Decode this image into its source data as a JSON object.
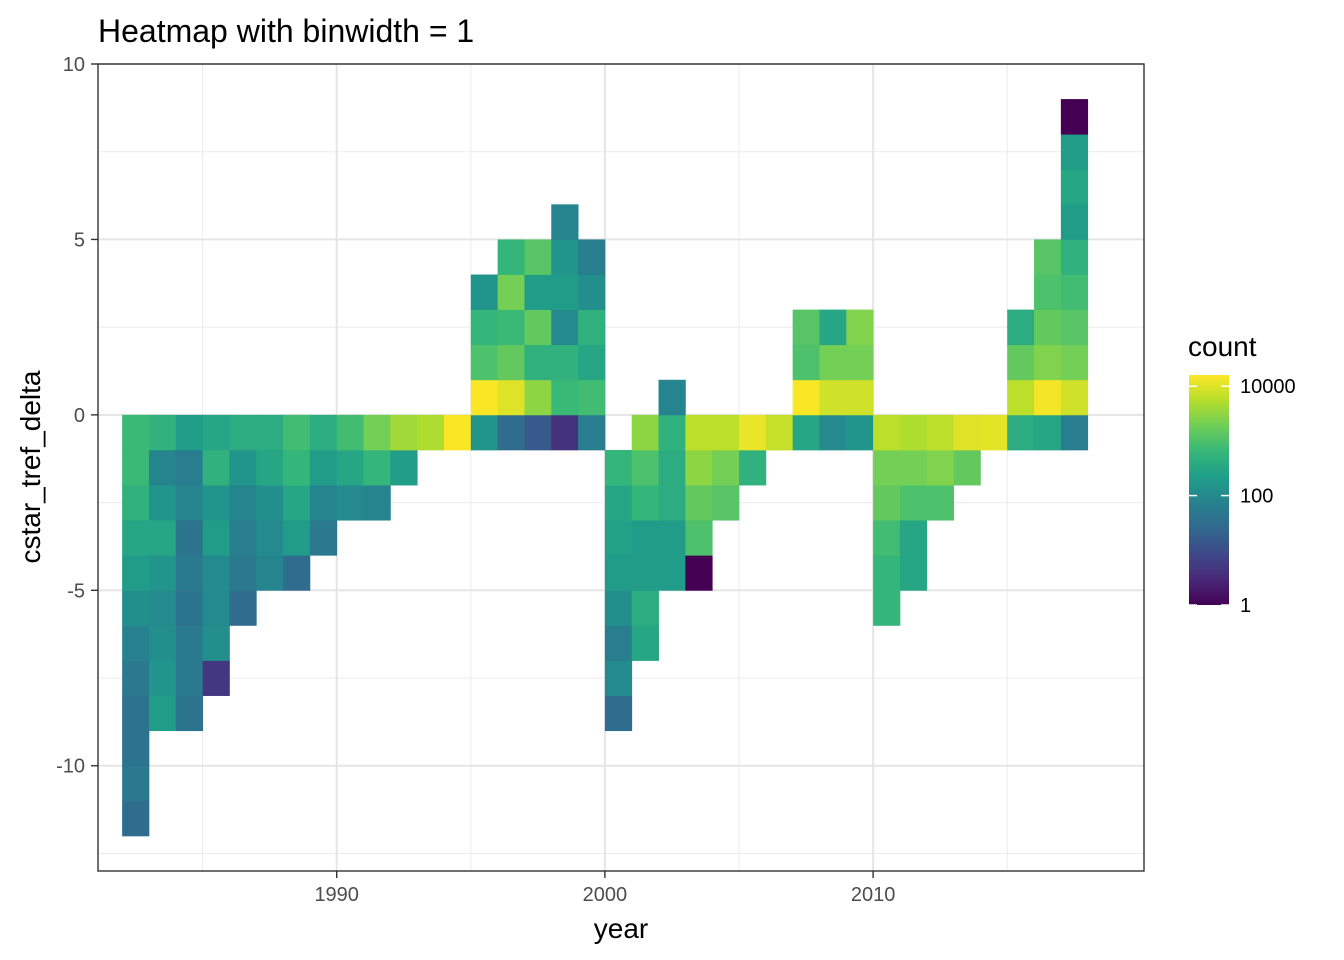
{
  "chart_data": {
    "type": "heatmap",
    "title": "Heatmap with binwidth = 1",
    "xlabel": "year",
    "ylabel": "cstar_tref_delta",
    "xlim": [
      1981.1,
      2020.1
    ],
    "ylim": [
      -13.0,
      10.0
    ],
    "x_ticks": [
      1990,
      2000,
      2010
    ],
    "x_tick_labels": [
      "1990",
      "2000",
      "2010"
    ],
    "y_ticks": [
      -10,
      -5,
      0,
      5,
      10
    ],
    "y_tick_labels": [
      "-10",
      "-5",
      "0",
      "5",
      "10"
    ],
    "grid": true,
    "binwidth": 1,
    "legend": {
      "title": "count",
      "position": "right",
      "scale": "log10",
      "min": 1,
      "max": 16000,
      "ticks": [
        1,
        100,
        10000
      ],
      "tick_labels": [
        "1",
        "100",
        "10000"
      ]
    },
    "colormap": [
      "#440154",
      "#482878",
      "#3e4989",
      "#31688e",
      "#26828e",
      "#1f9e89",
      "#35b779",
      "#6ece58",
      "#b5de2b",
      "#fde725"
    ],
    "bin_x_starts": [
      1982,
      1983,
      1984,
      1985,
      1986,
      1987,
      1988,
      1989,
      1990,
      1991,
      1992,
      1993,
      1994,
      1995,
      1996,
      1997,
      1998,
      1999,
      2000,
      2001,
      2002,
      2003,
      2004,
      2005,
      2006,
      2007,
      2008,
      2009,
      2010,
      2011,
      2012,
      2013,
      2014,
      2015,
      2016,
      2017
    ],
    "columns": [
      {
        "yStart": -12,
        "counts": [
          30,
          50,
          40,
          40,
          50,
          70,
          120,
          200,
          300,
          500,
          700,
          700
        ]
      },
      {
        "yStart": -9,
        "counts": [
          200,
          150,
          120,
          100,
          150,
          300,
          150,
          80,
          500
        ]
      },
      {
        "yStart": -9,
        "counts": [
          40,
          50,
          50,
          40,
          50,
          40,
          80,
          60,
          200
        ]
      },
      {
        "yStart": -8,
        "counts": [
          5,
          120,
          100,
          100,
          200,
          150,
          500,
          300
        ]
      },
      {
        "yStart": -6,
        "counts": [
          30,
          50,
          60,
          80,
          150,
          400
        ]
      },
      {
        "yStart": -5,
        "counts": [
          80,
          100,
          120,
          300,
          400
        ]
      },
      {
        "yStart": -5,
        "counts": [
          30,
          200,
          300,
          600,
          800
        ]
      },
      {
        "yStart": -4,
        "counts": [
          50,
          80,
          200,
          400
        ]
      },
      {
        "yStart": -3,
        "counts": [
          100,
          300,
          800
        ]
      },
      {
        "yStart": -3,
        "counts": [
          80,
          600,
          2000
        ]
      },
      {
        "yStart": -2,
        "counts": [
          200,
          4000
        ]
      },
      {
        "yStart": -1,
        "counts": [
          5000
        ]
      },
      {
        "yStart": -1,
        "counts": [
          15000
        ]
      },
      {
        "yStart": -1,
        "counts": [
          150,
          15000,
          1000,
          600,
          150
        ]
      },
      {
        "yStart": -1,
        "counts": [
          30,
          10000,
          1500,
          700,
          2000,
          600
        ]
      },
      {
        "yStart": -1,
        "counts": [
          15,
          3000,
          500,
          1500,
          200,
          1200
        ]
      },
      {
        "yStart": -1,
        "counts": [
          4,
          700,
          500,
          100,
          200,
          150,
          80
        ]
      },
      {
        "yStart": -1,
        "counts": [
          60,
          800,
          300,
          500,
          120,
          60
        ]
      },
      {
        "yStart": -9,
        "counts": [
          30,
          100,
          60,
          120,
          200,
          250,
          300,
          600
        ]
      },
      {
        "yStart": -7,
        "counts": [
          300,
          400,
          200,
          200,
          600,
          1000,
          3000
        ]
      },
      {
        "yStart": -5,
        "counts": [
          200,
          200,
          400,
          400,
          500,
          80
        ]
      },
      {
        "yStart": -5,
        "counts": [
          1,
          1000,
          1500,
          3000,
          6000
        ]
      },
      {
        "yStart": -3,
        "counts": [
          1200,
          2000,
          6000
        ]
      },
      {
        "yStart": -2,
        "counts": [
          500,
          12000
        ]
      },
      {
        "yStart": -1,
        "counts": [
          7000
        ]
      },
      {
        "yStart": -1,
        "counts": [
          300,
          15000,
          1000,
          1200
        ]
      },
      {
        "yStart": -1,
        "counts": [
          100,
          8000,
          2000,
          300
        ]
      },
      {
        "yStart": -1,
        "counts": [
          150,
          8000,
          2000,
          2500
        ]
      },
      {
        "yStart": -6,
        "counts": [
          600,
          600,
          800,
          1500,
          2000,
          6000
        ]
      },
      {
        "yStart": -5,
        "counts": [
          300,
          300,
          1000,
          2000,
          5000
        ]
      },
      {
        "yStart": -3,
        "counts": [
          1000,
          2500,
          6000
        ]
      },
      {
        "yStart": -2,
        "counts": [
          1500,
          10000
        ]
      },
      {
        "yStart": -1,
        "counts": [
          11000
        ]
      },
      {
        "yStart": -1,
        "counts": [
          400,
          6000,
          1500,
          400
        ]
      },
      {
        "yStart": -1,
        "counts": [
          300,
          14000,
          2500,
          1500,
          1000,
          1200
        ]
      },
      {
        "yStart": -1,
        "counts": [
          60,
          8000,
          2000,
          1200,
          800,
          500,
          200,
          300,
          200,
          1
        ]
      }
    ]
  }
}
